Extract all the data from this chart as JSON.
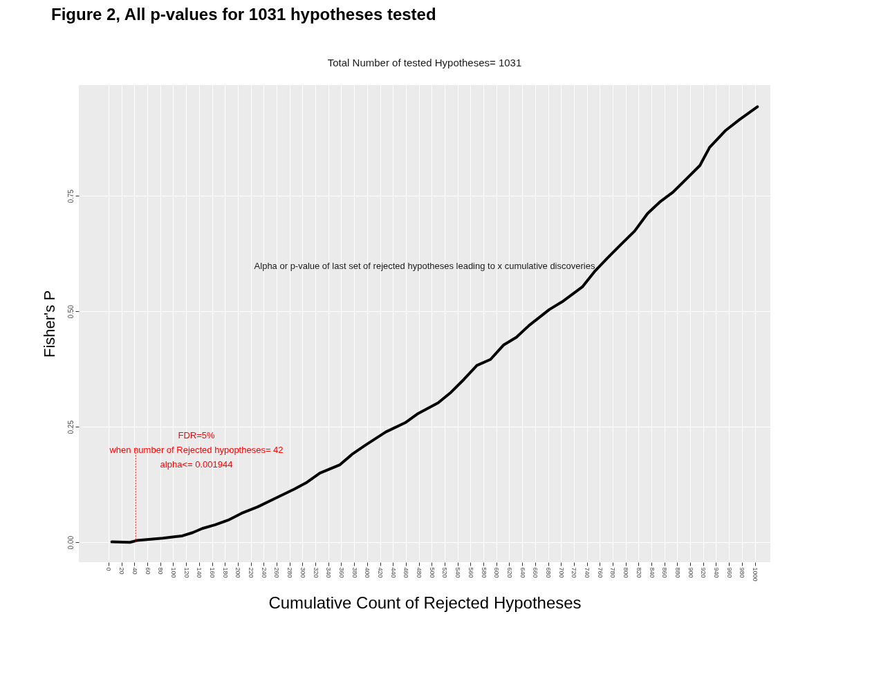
{
  "chart_data": {
    "type": "line",
    "title": "Figure 2, All p-values for 1031 hypotheses tested",
    "subtitle": "Total Number of tested Hypotheses= 1031",
    "xlabel": "Cumulative Count of Rejected Hypotheses",
    "ylabel": "Fisher's P",
    "x": [
      5,
      33,
      44,
      84,
      114,
      130,
      145,
      165,
      185,
      206,
      231,
      256,
      287,
      307,
      327,
      358,
      378,
      398,
      429,
      459,
      479,
      510,
      530,
      550,
      570,
      591,
      611,
      631,
      651,
      682,
      702,
      733,
      753,
      773,
      793,
      814,
      834,
      854,
      874,
      895,
      915,
      930,
      955,
      976,
      1004
    ],
    "series": [
      {
        "color": "#000000",
        "values": [
          0.001,
          0.0,
          0.004,
          0.009,
          0.014,
          0.021,
          0.03,
          0.038,
          0.048,
          0.063,
          0.077,
          0.094,
          0.115,
          0.13,
          0.15,
          0.168,
          0.192,
          0.211,
          0.239,
          0.259,
          0.279,
          0.302,
          0.325,
          0.353,
          0.383,
          0.396,
          0.427,
          0.444,
          0.47,
          0.504,
          0.521,
          0.553,
          0.588,
          0.617,
          0.645,
          0.674,
          0.712,
          0.738,
          0.759,
          0.788,
          0.816,
          0.855,
          0.892,
          0.915,
          0.943
        ]
      }
    ],
    "xlim": [
      -46,
      1024
    ],
    "ylim": [
      -0.043,
      0.99
    ],
    "xticks": [
      0,
      20,
      40,
      60,
      80,
      100,
      120,
      140,
      160,
      180,
      200,
      220,
      240,
      260,
      280,
      300,
      320,
      340,
      360,
      380,
      400,
      420,
      440,
      460,
      480,
      500,
      520,
      540,
      560,
      580,
      600,
      620,
      640,
      660,
      680,
      700,
      720,
      740,
      760,
      780,
      800,
      820,
      840,
      860,
      880,
      900,
      920,
      940,
      960,
      980,
      1000
    ],
    "yticks": [
      {
        "value": 0,
        "label": "0.00"
      },
      {
        "value": 0.25,
        "label": "0.25"
      },
      {
        "value": 0.5,
        "label": "0.50"
      },
      {
        "value": 0.75,
        "label": "0.75"
      }
    ],
    "grid": true,
    "line_style": "solid",
    "marker": "none",
    "ref_lines": [
      {
        "axis": "x",
        "value": 42,
        "color": "#ff0000",
        "line_style": "dotted"
      }
    ],
    "annotations": [
      "Alpha or p-value of last set of rejected hypotheses leading to x cumulative discoveries",
      "FDR=5%\nwhen number of Rejected hypoptheses= 42\nalpha<= 0.001944"
    ]
  }
}
